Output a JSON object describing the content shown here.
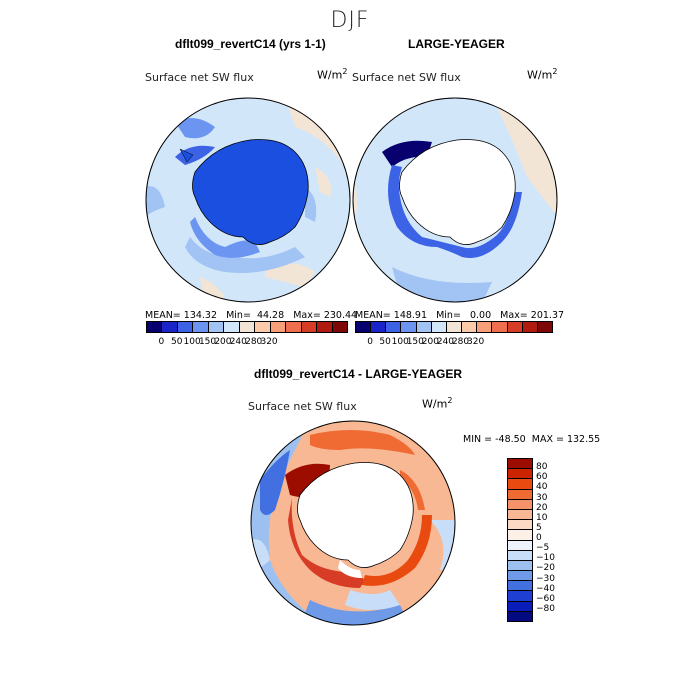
{
  "figure": {
    "season": "DJF",
    "panel1_title": "dflt099_revertC14 (yrs 1-1)",
    "panel2_title": "LARGE-YEAGER",
    "panel3_title": "dflt099_revertC14 - LARGE-YEAGER",
    "variable": "Surface net SW flux",
    "units": "W/m",
    "units_sup": "2"
  },
  "panel1": {
    "stats": "MEAN= 134.32   Min=  44.28   Max= 230.44"
  },
  "panel2": {
    "stats": "MEAN= 148.91   Min=   0.00   Max= 201.37"
  },
  "panel3": {
    "stats": "MIN = -48.50  MAX = 132.55"
  },
  "colorbar_top": {
    "ticks": [
      "0",
      "50",
      "100",
      "150",
      "200",
      "240",
      "280",
      "320"
    ],
    "colors": [
      "#08006e",
      "#1a24c8",
      "#3c62e6",
      "#6b95f0",
      "#a2c4f5",
      "#d2e6fa",
      "#f3e5d6",
      "#fccaa8",
      "#f79f7b",
      "#ee6e4f",
      "#d73c26",
      "#b11a0e",
      "#7d0806"
    ]
  },
  "colorbar_diff": {
    "labels": [
      "80",
      "60",
      "40",
      "30",
      "20",
      "10",
      "5",
      "0",
      "−5",
      "−10",
      "−20",
      "−30",
      "−40",
      "−60",
      "−80"
    ],
    "colors": [
      "#9c0d00",
      "#cc2300",
      "#e84a10",
      "#f06a34",
      "#f5926a",
      "#f8b894",
      "#fbd9c4",
      "#fdf0e6",
      "#eef3fb",
      "#c8ddf7",
      "#9cc0f0",
      "#6e9ae8",
      "#4370e0",
      "#1f3fd2",
      "#0a1db8",
      "#040b80"
    ]
  }
}
